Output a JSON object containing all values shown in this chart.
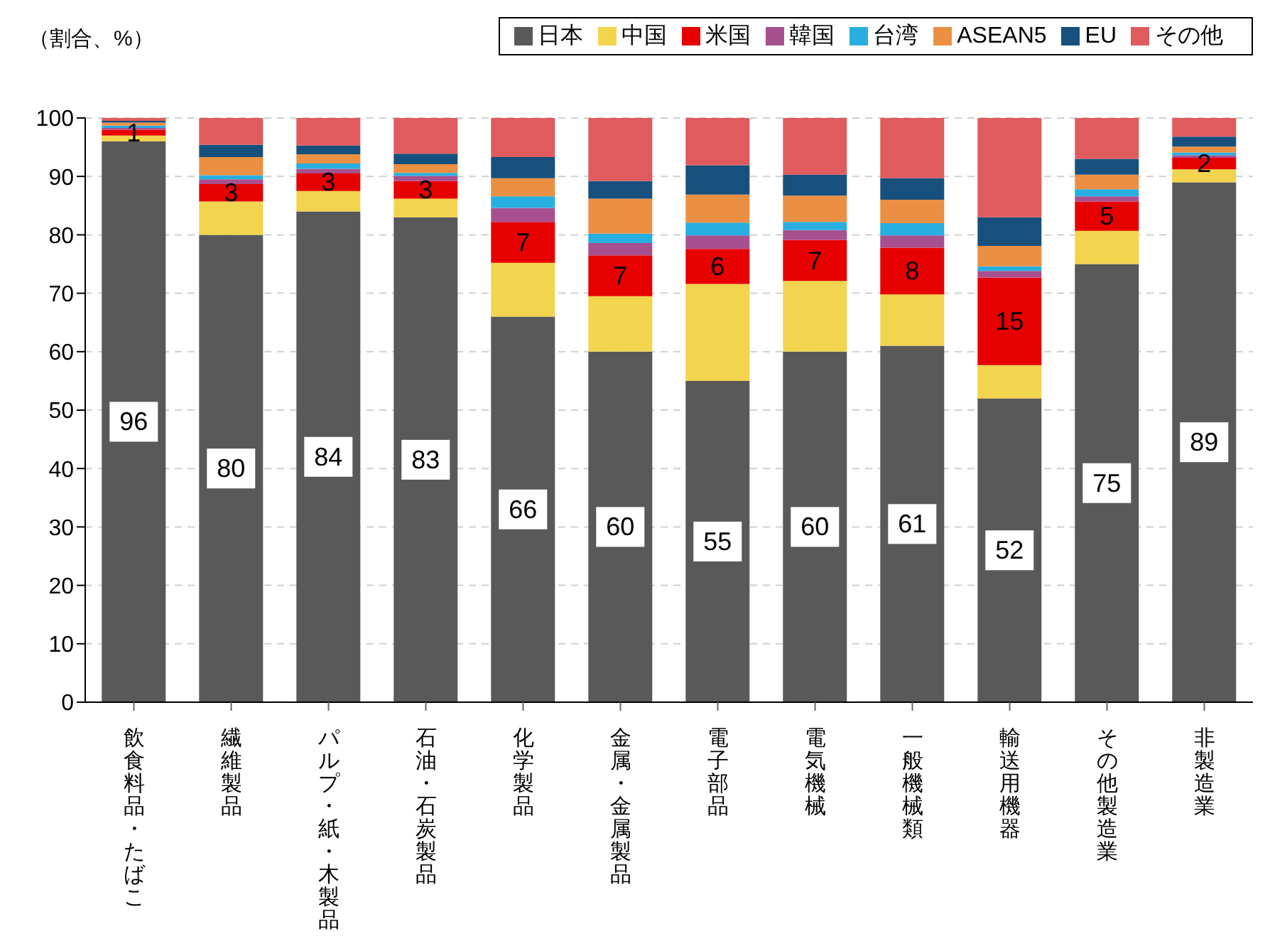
{
  "chart_data": {
    "type": "bar",
    "stacked": true,
    "ylabel": "（割合、%）",
    "categories": [
      "飲食料品・たばこ",
      "繊維製品",
      "パルプ・紙・木製品",
      "石油・石炭製品",
      "化学製品",
      "金属・金属製品",
      "電子部品",
      "電気機械",
      "一般機械類",
      "輸送用機器",
      "その他製造業",
      "非製造業"
    ],
    "series": [
      {
        "name": "日本",
        "color": "#595959",
        "values": [
          96,
          80,
          84,
          83,
          66,
          60,
          55,
          60,
          61,
          52,
          75,
          89
        ],
        "value_labels": [
          "96",
          "80",
          "84",
          "83",
          "66",
          "60",
          "55",
          "60",
          "61",
          "52",
          "75",
          "89"
        ]
      },
      {
        "name": "中国",
        "color": "#f2d44e",
        "values": [
          1,
          5.7,
          3.5,
          3.2,
          9.2,
          9.5,
          16.6,
          12.1,
          8.8,
          5.7,
          5.7,
          2.2
        ]
      },
      {
        "name": "米国",
        "color": "#e60000",
        "values": [
          1,
          3,
          3,
          3,
          7,
          7,
          6,
          7,
          8,
          15,
          5,
          2
        ],
        "value_labels": [
          "1",
          "3",
          "3",
          "3",
          "7",
          "7",
          "6",
          "7",
          "8",
          "15",
          "5",
          "2"
        ]
      },
      {
        "name": "韓国",
        "color": "#a8508f",
        "values": [
          0.3,
          0.8,
          0.8,
          0.9,
          2.4,
          2.1,
          2.3,
          1.7,
          2.1,
          1.1,
          0.9,
          0.4
        ]
      },
      {
        "name": "台湾",
        "color": "#29aee0",
        "values": [
          0.4,
          0.7,
          0.9,
          0.5,
          2.0,
          1.6,
          2.2,
          1.4,
          2.1,
          0.8,
          1.2,
          0.5
        ]
      },
      {
        "name": "ASEAN5",
        "color": "#eb8f43",
        "values": [
          0.5,
          3.1,
          1.6,
          1.5,
          3.1,
          6.0,
          4.8,
          4.5,
          4.0,
          3.5,
          2.5,
          1.0
        ]
      },
      {
        "name": "EU",
        "color": "#17507d",
        "values": [
          0.3,
          2.1,
          1.5,
          1.8,
          3.6,
          3.0,
          5.0,
          3.6,
          3.7,
          4.9,
          2.7,
          1.7
        ]
      },
      {
        "name": "その他",
        "color": "#df5b5d",
        "values": [
          0.5,
          4.9,
          4.7,
          6.1,
          6.7,
          10.8,
          8.1,
          9.7,
          10.3,
          17.0,
          7.0,
          3.2
        ]
      }
    ],
    "ylim": [
      0,
      100
    ],
    "yticks": [
      0,
      10,
      20,
      30,
      40,
      50,
      60,
      70,
      80,
      90,
      100
    ],
    "grid": "y",
    "legend": "top right"
  }
}
